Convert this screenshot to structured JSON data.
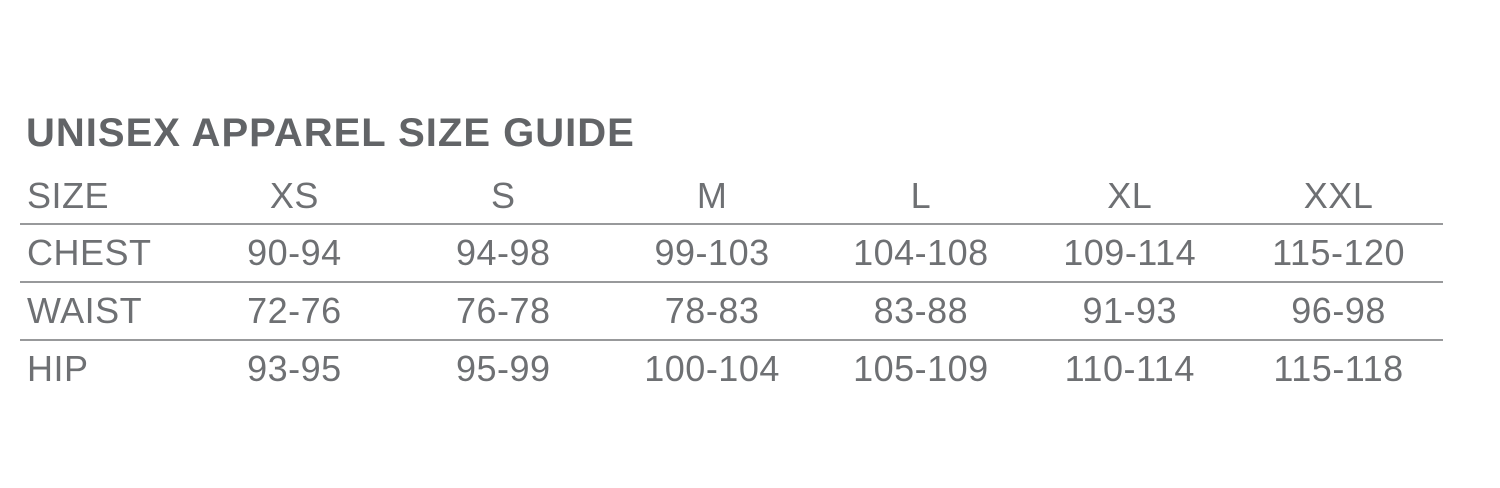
{
  "title": "UNISEX APPAREL SIZE GUIDE",
  "table": {
    "columns": [
      "SIZE",
      "XS",
      "S",
      "M",
      "L",
      "XL",
      "XXL"
    ],
    "rows": [
      {
        "label": "CHEST",
        "values": [
          "90-94",
          "94-98",
          "99-103",
          "104-108",
          "109-114",
          "115-120"
        ]
      },
      {
        "label": "WAIST",
        "values": [
          "72-76",
          "76-78",
          "78-83",
          "83-88",
          "91-93",
          "96-98"
        ]
      },
      {
        "label": "HIP",
        "values": [
          "93-95",
          "95-99",
          "100-104",
          "105-109",
          "110-114",
          "115-118"
        ]
      }
    ]
  },
  "colors": {
    "title_text": "#626467",
    "table_text": "#6e7073",
    "divider_line": "#98999b",
    "background": "#ffffff"
  }
}
